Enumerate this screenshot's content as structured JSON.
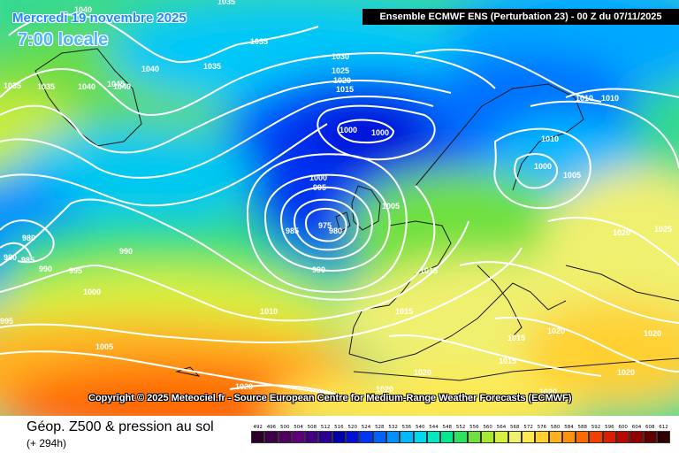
{
  "header": {
    "date_line": "Mercredi 19 novembre 2025",
    "time_line": "7:00 locale",
    "run_info": "Ensemble ECMWF ENS  (Perturbation 23)  -  00 Z du 07/11/2025"
  },
  "copyright": "Copyright © 2025 Meteociel.fr - Source European Centre for Medium-Range Weather Forecasts (ECMWF)",
  "footer": {
    "title": "Géop. Z500 & pression au sol",
    "lead": "(+ 294h)"
  },
  "scale": {
    "labels": [
      "492",
      "496",
      "500",
      "504",
      "508",
      "512",
      "516",
      "520",
      "524",
      "528",
      "532",
      "536",
      "540",
      "544",
      "548",
      "552",
      "556",
      "560",
      "564",
      "568",
      "572",
      "576",
      "580",
      "584",
      "588",
      "592",
      "596",
      "600",
      "604",
      "608",
      "612"
    ],
    "colors": [
      "#2a002a",
      "#3b0045",
      "#4d005e",
      "#5e0078",
      "#40007f",
      "#2a0091",
      "#0000a8",
      "#0010d8",
      "#0035f5",
      "#0062ff",
      "#0090ff",
      "#00b8ff",
      "#00d8f0",
      "#00e8c0",
      "#00e890",
      "#30e060",
      "#70e040",
      "#a8e830",
      "#d8f040",
      "#f0f070",
      "#ffe850",
      "#ffd030",
      "#ffb020",
      "#ff9010",
      "#ff6a00",
      "#f04000",
      "#d82000",
      "#b80800",
      "#900000",
      "#600000",
      "#300000"
    ]
  },
  "pressure_labels": [
    {
      "text": "1040"
    },
    {
      "text": "1035"
    },
    {
      "text": "1040"
    },
    {
      "text": "1045"
    },
    {
      "text": "1040"
    },
    {
      "text": "1035"
    },
    {
      "text": "1040"
    },
    {
      "text": "1035"
    },
    {
      "text": "1035"
    },
    {
      "text": "1030"
    },
    {
      "text": "1025"
    },
    {
      "text": "1020"
    },
    {
      "text": "1015"
    },
    {
      "text": "1000"
    },
    {
      "text": "1000"
    },
    {
      "text": "1000"
    },
    {
      "text": "995"
    },
    {
      "text": "985"
    },
    {
      "text": "975"
    },
    {
      "text": "980"
    },
    {
      "text": "990"
    },
    {
      "text": "1005"
    },
    {
      "text": "980"
    },
    {
      "text": "980"
    },
    {
      "text": "985"
    },
    {
      "text": "990"
    },
    {
      "text": "995"
    },
    {
      "text": "990"
    },
    {
      "text": "1000"
    },
    {
      "text": "995"
    },
    {
      "text": "1010"
    },
    {
      "text": "1005"
    },
    {
      "text": "1015"
    },
    {
      "text": "1015"
    },
    {
      "text": "1010"
    },
    {
      "text": "1010"
    },
    {
      "text": "1010"
    },
    {
      "text": "1000"
    },
    {
      "text": "1005"
    },
    {
      "text": "1020"
    },
    {
      "text": "1025"
    },
    {
      "text": "1015"
    },
    {
      "text": "1015"
    },
    {
      "text": "1020"
    },
    {
      "text": "1020"
    },
    {
      "text": "1020"
    },
    {
      "text": "1020"
    },
    {
      "text": "1020"
    },
    {
      "text": "1020"
    },
    {
      "text": "1020"
    },
    {
      "text": "1035"
    }
  ]
}
